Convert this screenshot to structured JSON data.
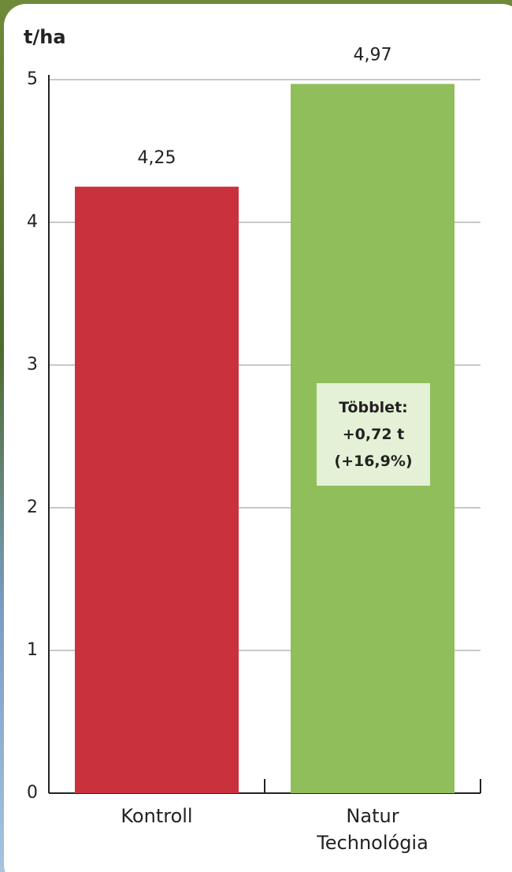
{
  "chart_data": {
    "type": "bar",
    "y_label": "t/ha",
    "categories": [
      "Kontroll",
      "Natur Technológia"
    ],
    "values": [
      4.25,
      4.97
    ],
    "value_labels": [
      "4,25",
      "4,97"
    ],
    "colors": [
      "#c9323d",
      "#8fbe5b"
    ],
    "ylim": [
      0,
      5
    ],
    "yticks": [
      0,
      1,
      2,
      3,
      4,
      5
    ],
    "grid": true,
    "annotation": [
      "Többlet:",
      "+0,72 t",
      "(+16,9%)"
    ]
  }
}
